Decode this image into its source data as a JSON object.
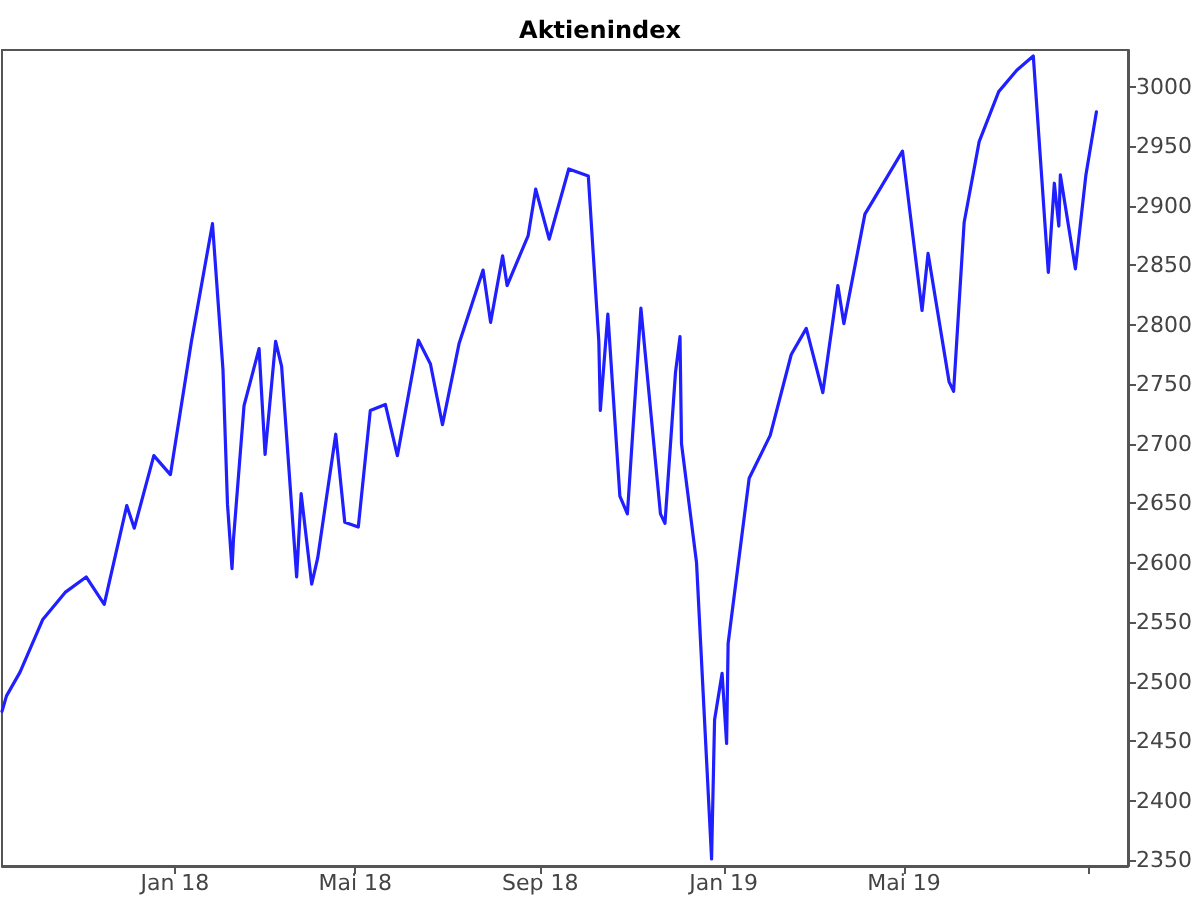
{
  "chart_data": {
    "type": "line",
    "title": "Aktienindex",
    "x": [
      "2017-09-08",
      "2017-09-11",
      "2017-09-20",
      "2017-10-05",
      "2017-10-20",
      "2017-11-03",
      "2017-11-15",
      "2017-11-30",
      "2017-12-05",
      "2017-12-18",
      "2017-12-29",
      "2018-01-12",
      "2018-01-26",
      "2018-02-02",
      "2018-02-05",
      "2018-02-08",
      "2018-02-09",
      "2018-02-16",
      "2018-02-26",
      "2018-03-02",
      "2018-03-09",
      "2018-03-13",
      "2018-03-23",
      "2018-03-26",
      "2018-04-02",
      "2018-04-06",
      "2018-04-18",
      "2018-04-24",
      "2018-05-03",
      "2018-05-11",
      "2018-05-21",
      "2018-05-29",
      "2018-06-12",
      "2018-06-20",
      "2018-06-28",
      "2018-07-09",
      "2018-07-25",
      "2018-07-30",
      "2018-08-07",
      "2018-08-10",
      "2018-08-24",
      "2018-08-29",
      "2018-09-07",
      "2018-09-20",
      "2018-10-03",
      "2018-10-10",
      "2018-10-11",
      "2018-10-16",
      "2018-10-24",
      "2018-10-29",
      "2018-11-07",
      "2018-11-20",
      "2018-11-23",
      "2018-11-30",
      "2018-12-03",
      "2018-12-04",
      "2018-12-14",
      "2018-12-24",
      "2018-12-26",
      "2018-12-31",
      "2019-01-03",
      "2019-01-04",
      "2019-01-18",
      "2019-02-01",
      "2019-02-15",
      "2019-02-25",
      "2019-03-08",
      "2019-03-18",
      "2019-03-22",
      "2019-04-05",
      "2019-04-30",
      "2019-05-13",
      "2019-05-17",
      "2019-05-31",
      "2019-06-03",
      "2019-06-10",
      "2019-06-20",
      "2019-07-03",
      "2019-07-15",
      "2019-07-26",
      "2019-08-05",
      "2019-08-09",
      "2019-08-12",
      "2019-08-13",
      "2019-08-23",
      "2019-08-30",
      "2019-09-06"
    ],
    "values": [
      2475,
      2488,
      2508,
      2552,
      2575,
      2588,
      2565,
      2648,
      2629,
      2690,
      2674,
      2786,
      2885,
      2762,
      2649,
      2595,
      2620,
      2732,
      2780,
      2691,
      2786,
      2765,
      2588,
      2658,
      2582,
      2604,
      2708,
      2634,
      2630,
      2728,
      2733,
      2690,
      2787,
      2767,
      2716,
      2784,
      2846,
      2802,
      2858,
      2833,
      2875,
      2914,
      2872,
      2931,
      2925,
      2786,
      2728,
      2809,
      2656,
      2641,
      2814,
      2641,
      2633,
      2760,
      2790,
      2700,
      2600,
      2351,
      2468,
      2507,
      2448,
      2532,
      2671,
      2707,
      2775,
      2797,
      2743,
      2833,
      2801,
      2893,
      2946,
      2812,
      2860,
      2752,
      2744,
      2886,
      2954,
      2996,
      3014,
      3026,
      2844,
      2919,
      2883,
      2926,
      2847,
      2926,
      2979
    ],
    "color": "#1f1fff",
    "xlim": [
      "2017-09-08",
      "2019-09-27"
    ],
    "xticks": [
      {
        "value": "2018-01-01",
        "label": "Jan 18"
      },
      {
        "value": "2018-05-01",
        "label": "Mai 18"
      },
      {
        "value": "2018-09-01",
        "label": "Sep 18"
      },
      {
        "value": "2019-01-01",
        "label": "Jan 19"
      },
      {
        "value": "2019-05-01",
        "label": "Mai 19"
      },
      {
        "value": "2019-09-01",
        "label": null
      }
    ],
    "ylim": [
      2345,
      3031
    ],
    "yticks": [
      2350,
      2400,
      2450,
      2500,
      2550,
      2600,
      2650,
      2700,
      2750,
      2800,
      2850,
      2900,
      2950,
      3000
    ],
    "grid": false,
    "marker": "none",
    "line_style": "solid"
  }
}
